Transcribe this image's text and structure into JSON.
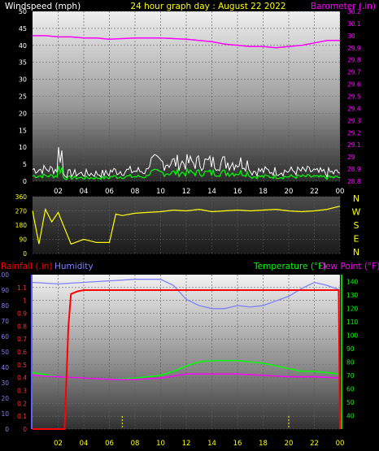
{
  "colors": {
    "background": "#000000",
    "windspeed": "#ffffff",
    "barometer": "#ff00ff",
    "title": "#ffff00",
    "direction": "#ffff00",
    "rainfall": "#ff0000",
    "humidity": "#8080ff",
    "temperature": "#00ff00",
    "dewpoint": "#ff00ff",
    "gust": "#ffffff",
    "avg": "#00ff00"
  },
  "chart_data": [
    {
      "type": "line",
      "title": "24 hour graph day : August 22 2022",
      "x_ticks": [
        "02",
        "04",
        "06",
        "08",
        "10",
        "12",
        "14",
        "16",
        "18",
        "20",
        "22",
        "00"
      ],
      "left_axis": {
        "label": "Windspeed (mph)",
        "range": [
          0,
          50
        ],
        "ticks": [
          "0",
          "5",
          "10",
          "15",
          "20",
          "25",
          "30",
          "35",
          "40",
          "45",
          "50"
        ]
      },
      "right_axis": {
        "label": "Barometer (.in)",
        "range": [
          28.8,
          30.2
        ],
        "ticks": [
          "28.8",
          "28.9",
          "29",
          "29.1",
          "29.2",
          "29.3",
          "29.4",
          "29.5",
          "29.6",
          "29.7",
          "29.8",
          "29.9",
          "30",
          "30.1",
          "30.2"
        ]
      },
      "series": [
        {
          "axis": "right",
          "x": [
            0,
            1,
            2,
            3,
            4,
            5,
            6,
            8,
            10,
            12,
            14,
            15,
            16,
            17,
            18,
            19,
            20,
            21,
            22,
            23,
            24
          ],
          "values": [
            30.0,
            30.0,
            29.99,
            29.99,
            29.98,
            29.98,
            29.97,
            29.98,
            29.98,
            29.97,
            29.95,
            29.93,
            29.92,
            29.91,
            29.91,
            29.9,
            29.91,
            29.92,
            29.94,
            29.96,
            29.96
          ]
        }
      ]
    },
    {
      "type": "line",
      "title": "",
      "x_ticks": [
        "02",
        "04",
        "06",
        "08",
        "10",
        "12",
        "14",
        "16",
        "18",
        "20",
        "22",
        "00"
      ],
      "left_axis": {
        "label": "",
        "range": [
          0,
          360
        ],
        "ticks": [
          "0",
          "90",
          "180",
          "270",
          "360"
        ]
      },
      "right_axis": {
        "label": "",
        "ticks": [
          "N",
          "W",
          "S",
          "E",
          "N"
        ]
      },
      "series": [
        {
          "x": [
            0,
            0.5,
            1,
            1.5,
            2,
            3,
            4,
            5,
            6,
            6.5,
            7,
            8,
            9,
            10,
            11,
            12,
            13,
            14,
            15,
            16,
            17,
            18,
            19,
            20,
            21,
            22,
            23,
            24
          ],
          "values": [
            270,
            60,
            280,
            200,
            260,
            60,
            90,
            70,
            70,
            250,
            240,
            255,
            260,
            265,
            275,
            270,
            280,
            265,
            270,
            275,
            270,
            275,
            280,
            270,
            265,
            270,
            280,
            300
          ]
        }
      ]
    },
    {
      "type": "line",
      "title": "",
      "x_ticks": [
        "02",
        "04",
        "06",
        "08",
        "10",
        "12",
        "14",
        "16",
        "18",
        "20",
        "22",
        "00"
      ],
      "labels": {
        "rainfall": "Rainfall (.in)",
        "humidity": "Humidity",
        "temperature": "Temperature (°F)",
        "dewpoint": "Dew Point (°F)"
      },
      "axes": {
        "humidity": {
          "range": [
            0,
            100
          ],
          "ticks": [
            "0",
            "10",
            "20",
            "30",
            "40",
            "50",
            "60",
            "70",
            "80",
            "90",
            "100"
          ]
        },
        "rainfall": {
          "range": [
            0,
            1.2
          ],
          "ticks": [
            "0",
            "0.1",
            "0.2",
            "0.3",
            "0.4",
            "0.5",
            "0.6",
            "0.7",
            "0.8",
            "0.9",
            "1",
            "1.1"
          ]
        },
        "temperature": {
          "range": [
            30,
            145
          ],
          "ticks": [
            "40",
            "50",
            "60",
            "70",
            "80",
            "90",
            "100",
            "110",
            "120",
            "130",
            "140"
          ]
        }
      },
      "series": [
        {
          "name": "Rainfall (.in)",
          "axis": "rainfall",
          "x": [
            0,
            2.5,
            2.8,
            3,
            3.5,
            4,
            10,
            16,
            20,
            23.9,
            24
          ],
          "values": [
            0,
            0,
            0.8,
            1.05,
            1.07,
            1.08,
            1.08,
            1.08,
            1.08,
            1.08,
            0
          ]
        },
        {
          "name": "Humidity",
          "axis": "humidity",
          "x": [
            0,
            2,
            4,
            6,
            8,
            10,
            11,
            12,
            13,
            14,
            15,
            16,
            17,
            18,
            19,
            20,
            21,
            22,
            23,
            24
          ],
          "values": [
            95,
            94,
            95,
            96,
            97,
            97,
            93,
            84,
            80,
            78,
            78,
            80,
            79,
            80,
            83,
            86,
            91,
            95,
            93,
            90
          ]
        },
        {
          "name": "Temperature (°F)",
          "axis": "temperature",
          "x": [
            0,
            2,
            4,
            6,
            8,
            10,
            11,
            12,
            13,
            14,
            15,
            16,
            17,
            18,
            19,
            20,
            21,
            22,
            23,
            24
          ],
          "values": [
            72,
            69,
            68,
            67,
            68,
            70,
            73,
            77,
            80,
            81,
            81,
            81,
            80,
            79,
            77,
            75,
            73,
            73,
            72,
            71
          ]
        },
        {
          "name": "Dew Point (°F)",
          "axis": "temperature",
          "x": [
            0,
            2,
            4,
            6,
            8,
            10,
            12,
            14,
            16,
            18,
            20,
            22,
            24
          ],
          "values": [
            70,
            69,
            68,
            67,
            67,
            68,
            71,
            71,
            71,
            70,
            69,
            69,
            68
          ]
        }
      ]
    }
  ]
}
